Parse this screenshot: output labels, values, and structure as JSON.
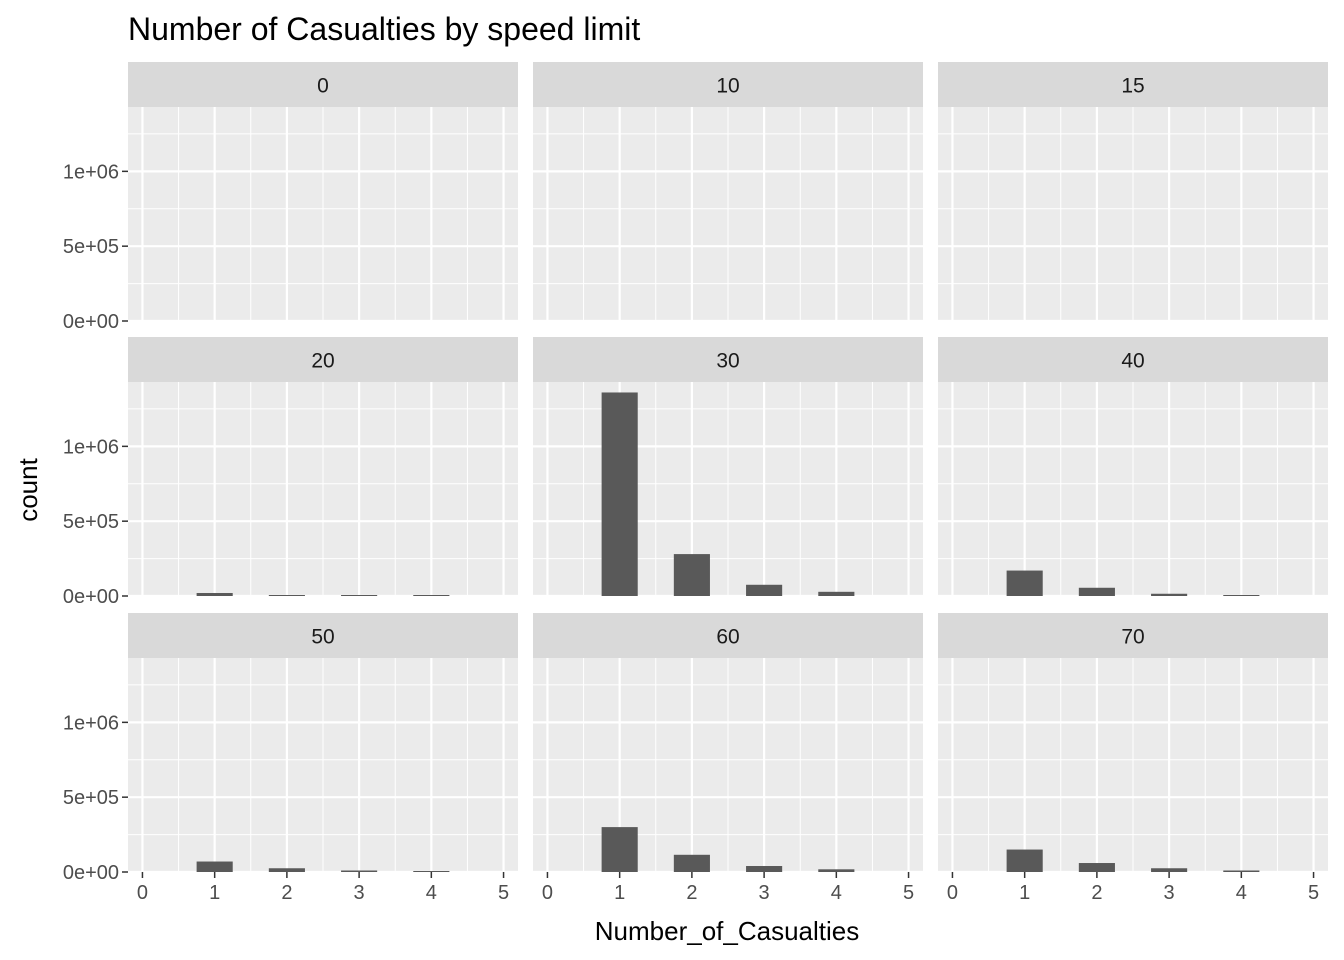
{
  "chart_data": {
    "type": "bar",
    "title": "Number of Casualties by speed limit",
    "xlabel": "Number_of_Casualties",
    "ylabel": "count",
    "xlim": [
      -0.2,
      5.2
    ],
    "ylim": [
      0,
      1430000
    ],
    "x_ticks": [
      0,
      1,
      2,
      3,
      4,
      5
    ],
    "y_ticks": [
      {
        "value": 0,
        "label": "0e+00"
      },
      {
        "value": 500000,
        "label": "5e+05"
      },
      {
        "value": 1000000,
        "label": "1e+06"
      }
    ],
    "facet_variable": "speed limit",
    "facets": [
      {
        "label": "0",
        "x": [
          1,
          2,
          3,
          4
        ],
        "values": [
          0,
          0,
          0,
          0
        ]
      },
      {
        "label": "10",
        "x": [
          1,
          2,
          3,
          4
        ],
        "values": [
          0,
          0,
          0,
          0
        ]
      },
      {
        "label": "15",
        "x": [
          1,
          2,
          3,
          4
        ],
        "values": [
          0,
          0,
          0,
          0
        ]
      },
      {
        "label": "20",
        "x": [
          1,
          2,
          3,
          4
        ],
        "values": [
          20000,
          3000,
          1000,
          300
        ]
      },
      {
        "label": "30",
        "x": [
          1,
          2,
          3,
          4
        ],
        "values": [
          1360000,
          280000,
          75000,
          28000
        ]
      },
      {
        "label": "40",
        "x": [
          1,
          2,
          3,
          4
        ],
        "values": [
          170000,
          55000,
          15000,
          6000
        ]
      },
      {
        "label": "50",
        "x": [
          1,
          2,
          3,
          4
        ],
        "values": [
          70000,
          25000,
          10000,
          4000
        ]
      },
      {
        "label": "60",
        "x": [
          1,
          2,
          3,
          4
        ],
        "values": [
          300000,
          115000,
          40000,
          18000
        ]
      },
      {
        "label": "70",
        "x": [
          1,
          2,
          3,
          4
        ],
        "values": [
          150000,
          60000,
          25000,
          10000
        ]
      }
    ],
    "bar_color": "#595959",
    "panel_background": "#EBEBEB",
    "strip_background": "#D9D9D9",
    "grid": true,
    "legend": "none"
  }
}
